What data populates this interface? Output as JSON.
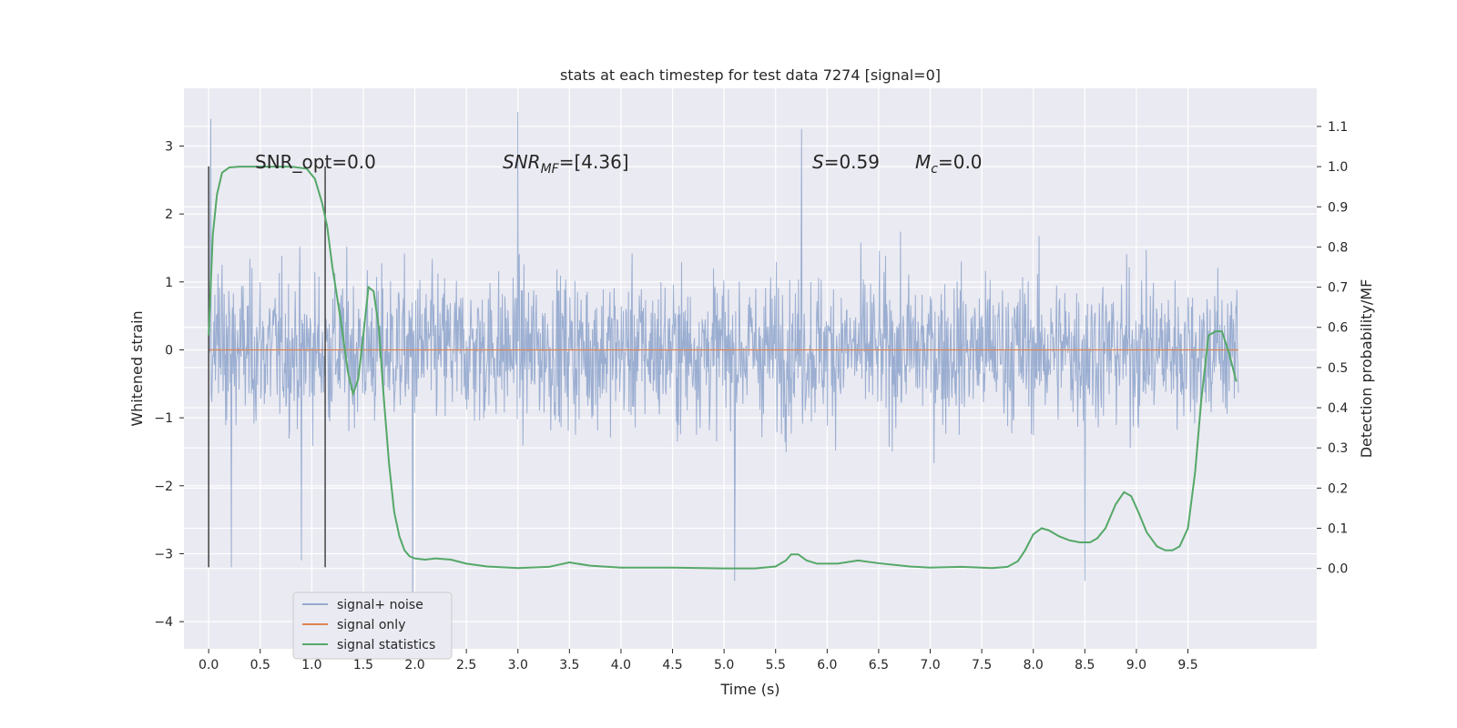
{
  "chart_data": {
    "type": "line",
    "title": "stats at each timestep for test data 7274 [signal=0]",
    "xlabel": "Time (s)",
    "ylabel": "Whitened strain",
    "y2label": "Detection probability/MF",
    "xlim": [
      -0.24,
      10.75
    ],
    "ylim": [
      -4.4,
      3.85
    ],
    "y2lim": [
      -0.2,
      1.195
    ],
    "xticks": [
      "0.0",
      "0.5",
      "1.0",
      "1.5",
      "2.0",
      "2.5",
      "3.0",
      "3.5",
      "4.0",
      "4.5",
      "5.0",
      "5.5",
      "6.0",
      "6.5",
      "7.0",
      "7.5",
      "8.0",
      "8.5",
      "9.0",
      "9.5"
    ],
    "yticks": [
      "3",
      "2",
      "1",
      "0",
      "−1",
      "−2",
      "−3",
      "−4"
    ],
    "y2ticks": [
      "1.1",
      "1.0",
      "0.9",
      "0.8",
      "0.7",
      "0.6",
      "0.5",
      "0.4",
      "0.3",
      "0.2",
      "0.1",
      "0.0"
    ],
    "grid": true,
    "legend_position": "lower-left",
    "colors": {
      "background": "#eaeaf2",
      "noise": "#4c72b0",
      "signal": "#dd8452",
      "stats": "#55a868",
      "vline": "#444444"
    },
    "annotations": {
      "snr_opt": "SNR_opt=0.0",
      "snr_mf": "SNR_MF=[4.36]",
      "s": "S=0.59",
      "mc": "M_c=0.0"
    },
    "vlines": [
      {
        "x": 0.0,
        "ymin": -3.2,
        "ymax": 2.7
      },
      {
        "x": 1.13,
        "ymin": -3.2,
        "ymax": 2.7
      }
    ],
    "noise_spikes": [
      {
        "x": 0.02,
        "y": 3.4
      },
      {
        "x": 3.0,
        "y": 3.5
      },
      {
        "x": 5.75,
        "y": 3.25
      },
      {
        "x": 5.1,
        "y": -3.4
      },
      {
        "x": 8.5,
        "y": -3.4
      },
      {
        "x": 1.98,
        "y": -4.0
      },
      {
        "x": 0.22,
        "y": -3.2
      },
      {
        "x": 0.9,
        "y": -3.1
      }
    ],
    "series": [
      {
        "name": "signal+ noise",
        "description": "whitened noisy strain, envelope approx ±2.2, 0 to 10 s",
        "x_range": [
          0.0,
          9.99
        ],
        "envelope": 2.2
      },
      {
        "name": "signal only",
        "x": [
          0.0,
          9.99
        ],
        "y": [
          0.0,
          0.0
        ]
      },
      {
        "name": "signal statistics",
        "axis": "right",
        "x": [
          0.0,
          0.04,
          0.08,
          0.13,
          0.2,
          0.3,
          0.45,
          0.6,
          0.8,
          0.95,
          1.03,
          1.1,
          1.15,
          1.2,
          1.28,
          1.35,
          1.4,
          1.45,
          1.5,
          1.55,
          1.6,
          1.65,
          1.7,
          1.75,
          1.8,
          1.85,
          1.9,
          1.95,
          2.0,
          2.1,
          2.2,
          2.35,
          2.5,
          2.7,
          3.0,
          3.3,
          3.5,
          3.7,
          4.0,
          4.5,
          5.0,
          5.3,
          5.5,
          5.6,
          5.65,
          5.72,
          5.8,
          5.9,
          6.1,
          6.3,
          6.5,
          6.8,
          7.0,
          7.3,
          7.6,
          7.75,
          7.85,
          7.92,
          8.0,
          8.08,
          8.15,
          8.25,
          8.35,
          8.45,
          8.55,
          8.62,
          8.7,
          8.8,
          8.88,
          8.95,
          9.02,
          9.1,
          9.2,
          9.28,
          9.35,
          9.42,
          9.5,
          9.57,
          9.63,
          9.7,
          9.77,
          9.83,
          9.9,
          9.97
        ],
        "y": [
          0.58,
          0.83,
          0.93,
          0.985,
          0.998,
          1.0,
          1.0,
          1.0,
          1.0,
          0.995,
          0.97,
          0.91,
          0.85,
          0.75,
          0.62,
          0.49,
          0.435,
          0.47,
          0.58,
          0.7,
          0.69,
          0.6,
          0.42,
          0.26,
          0.14,
          0.08,
          0.045,
          0.03,
          0.025,
          0.022,
          0.025,
          0.022,
          0.012,
          0.005,
          0.001,
          0.004,
          0.015,
          0.007,
          0.002,
          0.002,
          0.0,
          0.0,
          0.005,
          0.02,
          0.035,
          0.035,
          0.02,
          0.012,
          0.012,
          0.02,
          0.013,
          0.005,
          0.002,
          0.004,
          0.001,
          0.004,
          0.018,
          0.045,
          0.085,
          0.1,
          0.095,
          0.08,
          0.07,
          0.065,
          0.065,
          0.075,
          0.1,
          0.16,
          0.19,
          0.18,
          0.14,
          0.09,
          0.055,
          0.045,
          0.045,
          0.055,
          0.1,
          0.24,
          0.42,
          0.58,
          0.59,
          0.59,
          0.535,
          0.465
        ]
      }
    ]
  }
}
